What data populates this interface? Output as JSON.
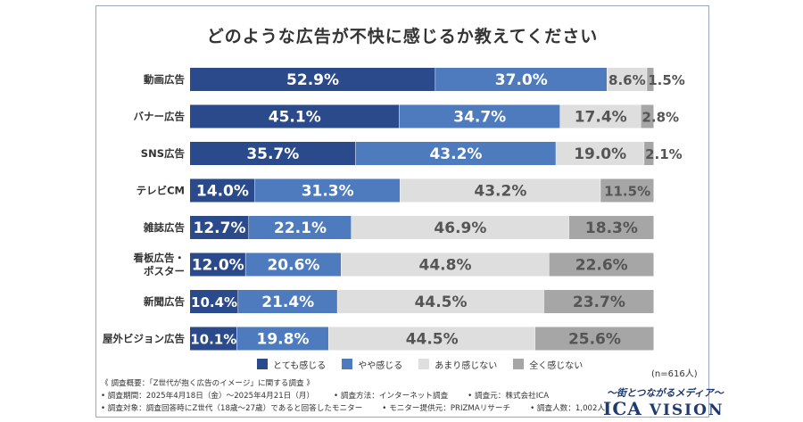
{
  "chart_data": {
    "type": "bar",
    "orientation": "horizontal-stacked-100",
    "title": "どのような広告が不快に感じるか教えてください",
    "categories": [
      "動画広告",
      "バナー広告",
      "SNS広告",
      "テレビCM",
      "雑誌広告",
      "看板広告・\nポスター",
      "新聞広告",
      "屋外ビジョン広告"
    ],
    "series": [
      {
        "name": "とても感じる",
        "color": "#2b4a8b",
        "label_color": "#ffffff",
        "values": [
          52.9,
          45.1,
          35.7,
          14.0,
          12.7,
          12.0,
          10.4,
          10.1
        ]
      },
      {
        "name": "やや感じる",
        "color": "#4e7bbd",
        "label_color": "#ffffff",
        "values": [
          37.0,
          34.7,
          43.2,
          31.3,
          22.1,
          20.6,
          21.4,
          19.8
        ]
      },
      {
        "name": "あまり感じない",
        "color": "#dedede",
        "label_color": "#555555",
        "values": [
          8.6,
          17.4,
          19.0,
          43.2,
          46.9,
          44.8,
          44.5,
          44.5
        ]
      },
      {
        "name": "全く感じない",
        "color": "#a6a6a6",
        "label_color": "#555555",
        "values": [
          1.5,
          2.8,
          2.1,
          11.5,
          18.3,
          22.6,
          23.7,
          25.6
        ]
      }
    ],
    "value_format": "%",
    "xlim": [
      0,
      100
    ],
    "legend_position": "bottom",
    "grid": false
  },
  "sample_note": "(n=616人)",
  "notes": {
    "line1": "《 調査概要：「Z世代が抱く広告のイメージ」に関する調査 》",
    "line2a": "• 調査期間：2025年4月18日（金）〜2025年4月21日（月）",
    "line2b": "• 調査方法：インターネット調査",
    "line2c": "• 調査元：株式会社ICA",
    "line3a": "• 調査対象：調査回答時にZ世代（18歳〜27歳）であると回答したモニター",
    "line3b": "• モニター提供元：PRIZMAリサーチ",
    "line3c": "• 調査人数：1,002人"
  },
  "brand": {
    "tagline": "〜街とつながるメディア〜",
    "name_main": "ICA",
    "name_sub": "VISION"
  }
}
